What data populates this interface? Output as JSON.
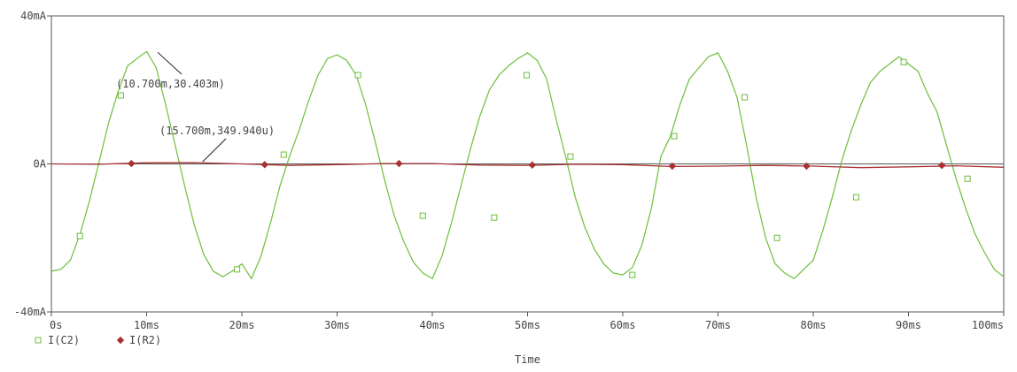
{
  "chart_data": {
    "type": "line",
    "xlabel": "Time",
    "ylabel": "",
    "x_unit": "ms",
    "xlim": [
      0,
      100
    ],
    "ylim": [
      -40,
      40
    ],
    "y_unit": "mA",
    "x_ticks": [
      {
        "value": 0,
        "label": "0s"
      },
      {
        "value": 10,
        "label": "10ms"
      },
      {
        "value": 20,
        "label": "20ms"
      },
      {
        "value": 30,
        "label": "30ms"
      },
      {
        "value": 40,
        "label": "40ms"
      },
      {
        "value": 50,
        "label": "50ms"
      },
      {
        "value": 60,
        "label": "60ms"
      },
      {
        "value": 70,
        "label": "70ms"
      },
      {
        "value": 80,
        "label": "80ms"
      },
      {
        "value": 90,
        "label": "90ms"
      },
      {
        "value": 100,
        "label": "100ms"
      }
    ],
    "y_ticks": [
      {
        "value": 40,
        "label": "40mA"
      },
      {
        "value": 0,
        "label": "0A"
      },
      {
        "value": -40,
        "label": "-40mA"
      }
    ],
    "grid": false,
    "legend_position": "bottom-left",
    "series": [
      {
        "name": "I(C2)",
        "color": "#6bbf3a",
        "marker": "square",
        "x": [
          0,
          1,
          2,
          3,
          4,
          5,
          6,
          7,
          8,
          9,
          10,
          11,
          12,
          13,
          14,
          15,
          16,
          17,
          18,
          19,
          20,
          21,
          22,
          23,
          24,
          25,
          26,
          27,
          28,
          29,
          30,
          31,
          32,
          33,
          34,
          35,
          36,
          37,
          38,
          39,
          40,
          41,
          42,
          43,
          44,
          45,
          46,
          47,
          48,
          49,
          50,
          51,
          52,
          53,
          54,
          55,
          56,
          57,
          58,
          59,
          60,
          61,
          62,
          63,
          64,
          65,
          66,
          67,
          68,
          69,
          70,
          71,
          72,
          73,
          74,
          75,
          76,
          77,
          78,
          79,
          80,
          81,
          82,
          83,
          84,
          85,
          86,
          87,
          88,
          89,
          90,
          91,
          92,
          93,
          94,
          95,
          96,
          97,
          98,
          99,
          100
        ],
        "y": [
          -29,
          -28.5,
          -26,
          -19,
          -10,
          0.5,
          11,
          19.5,
          26.5,
          28.5,
          30.4,
          26,
          16,
          5,
          -6,
          -16.5,
          -24.5,
          -29,
          -30.5,
          -29,
          -27,
          -31,
          -25,
          -16,
          -6,
          2,
          9,
          17,
          24,
          28.5,
          29.5,
          28,
          24,
          16,
          6,
          -4.5,
          -14,
          -21,
          -26.5,
          -29.5,
          -31,
          -25,
          -16,
          -6,
          4,
          13,
          20,
          24,
          26.5,
          28.5,
          30,
          28,
          23,
          12,
          2,
          -9,
          -17,
          -23,
          -27,
          -29.5,
          -30,
          -28,
          -22,
          -12,
          2,
          7.5,
          16,
          23,
          26,
          29,
          30,
          25,
          18,
          5,
          -9,
          -20,
          -27,
          -29.5,
          -31,
          -28.5,
          -26,
          -18,
          -9,
          1,
          9,
          16,
          22,
          25,
          27,
          29,
          27,
          25,
          19,
          14,
          5,
          -4,
          -12,
          -19,
          -24,
          -28.5,
          -30.5
        ]
      },
      {
        "name": "I(R2)",
        "color": "#a83232",
        "marker": "diamond",
        "x": [
          0,
          5,
          10,
          15,
          20,
          25,
          30,
          35,
          40,
          45,
          50,
          55,
          60,
          65,
          70,
          75,
          80,
          85,
          90,
          95,
          100
        ],
        "y": [
          0,
          -0.1,
          0.3,
          0.35,
          0,
          -0.4,
          -0.2,
          0.1,
          0.1,
          -0.3,
          -0.4,
          -0.1,
          -0.2,
          -0.7,
          -0.6,
          -0.4,
          -0.6,
          -1.0,
          -0.8,
          -0.5,
          -0.9
        ]
      }
    ],
    "marker_points": [
      {
        "series": "I(C2)",
        "x": [
          3,
          7.3,
          19.5,
          24.4,
          32.2,
          39,
          46.5,
          49.9,
          54.5,
          61,
          65.4,
          72.8,
          76.2,
          84.5,
          89.5,
          96.2
        ],
        "y": [
          -19.5,
          18.5,
          -28.5,
          2.5,
          24,
          -14,
          -14.5,
          24,
          2,
          -30,
          7.5,
          18,
          -20,
          -9,
          27.5,
          -4
        ]
      },
      {
        "series": "I(R2)",
        "x": [
          8.4,
          22.4,
          36.5,
          50.5,
          65.2,
          79.3,
          93.5
        ],
        "y": [
          0.1,
          -0.2,
          0.1,
          -0.3,
          -0.6,
          -0.6,
          -0.4
        ]
      }
    ],
    "annotations": [
      {
        "text": "(10.700m,30.403m)",
        "x": 10.7,
        "y": 30.403
      },
      {
        "text": "(15.700m,349.940u)",
        "x": 15.7,
        "y": 0.34994
      }
    ]
  }
}
